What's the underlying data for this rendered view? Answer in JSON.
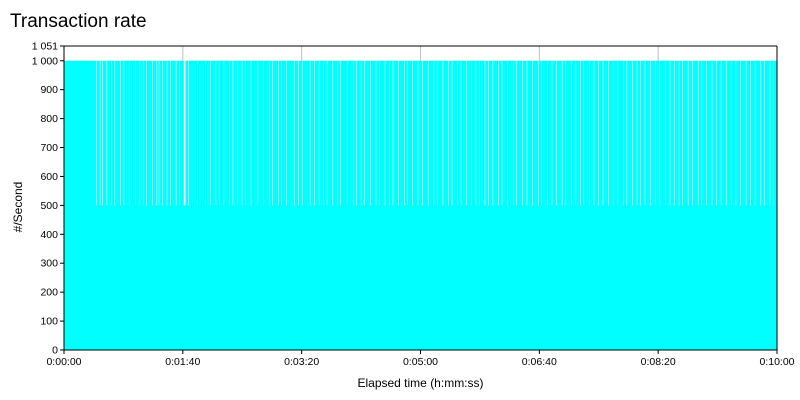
{
  "chart_data": {
    "type": "bar",
    "title": "Transaction rate",
    "xlabel": "Elapsed time (h:mm:ss)",
    "ylabel": "#/Second",
    "xlim": [
      0,
      600
    ],
    "ylim": [
      0,
      1051
    ],
    "y_ticks": [
      "0",
      "100",
      "200",
      "300",
      "400",
      "500",
      "600",
      "700",
      "800",
      "900",
      "1 000",
      "1 051"
    ],
    "y_tick_values": [
      0,
      100,
      200,
      300,
      400,
      500,
      600,
      700,
      800,
      900,
      1000,
      1051
    ],
    "x_ticks": [
      "0:00:00",
      "0:01:40",
      "0:03:20",
      "0:05:00",
      "0:06:40",
      "0:08:20",
      "0:10:00"
    ],
    "x_tick_values": [
      0,
      100,
      200,
      300,
      400,
      500,
      600
    ],
    "grid": true,
    "color": "#00ffff",
    "series": [
      {
        "values": [
          1000,
          1000,
          1000,
          1000,
          1000,
          1000,
          1000,
          1000,
          1000,
          1000,
          1000,
          1000,
          1000,
          1000,
          1000,
          1000,
          1000,
          1000,
          1000,
          1000,
          1000,
          1000,
          1000,
          1000,
          1000,
          1000,
          1000,
          1000,
          500,
          1000,
          1000,
          500,
          1000,
          500,
          1000,
          1000,
          1000,
          500,
          1000,
          1000,
          1000,
          500,
          1000,
          1000,
          500,
          1000,
          1000,
          1000,
          1000,
          500,
          1000,
          1000,
          500,
          1000,
          1000,
          1000,
          1000,
          500,
          1000,
          1000,
          1000,
          1000,
          500,
          1000,
          1000,
          1000,
          500,
          1000,
          1000,
          500,
          1000,
          1000,
          500,
          1000,
          1000,
          1000,
          1000,
          500,
          1000,
          1000,
          1000,
          500,
          1000,
          500,
          1000,
          1000,
          500,
          1000,
          1000,
          1000,
          500,
          1000,
          1000,
          500,
          1000,
          1000,
          1000,
          1000,
          500,
          1000,
          1000,
          500,
          1000,
          1000,
          1000,
          500,
          500,
          1000,
          1000,
          500,
          1000,
          1000,
          1000,
          1000,
          1000,
          1000,
          1000,
          500,
          1000,
          1000,
          1000,
          1000,
          1000,
          1000,
          500,
          1000,
          1000,
          1000,
          500,
          1000,
          1000,
          1000,
          1000,
          500,
          1000,
          1000,
          500,
          1000,
          1000,
          1000,
          500,
          1000,
          1000,
          1000,
          1000,
          500,
          1000,
          1000,
          500,
          1000,
          1000,
          1000,
          500,
          1000,
          1000,
          1000,
          500,
          1000,
          1000,
          500,
          1000,
          1000,
          1000,
          1000,
          500,
          1000,
          1000,
          1000,
          1000,
          1000,
          500,
          1000,
          1000,
          1000,
          1000,
          500,
          1000,
          1000,
          1000,
          1000,
          500,
          1000,
          1000,
          500,
          1000,
          1000,
          1000,
          1000,
          500,
          1000,
          1000,
          500,
          1000,
          1000,
          1000,
          500,
          1000,
          1000,
          1000,
          1000,
          1000,
          1000,
          500,
          1000,
          1000,
          1000,
          500,
          1000,
          1000,
          500,
          1000,
          1000,
          1000,
          1000,
          1000,
          1000,
          500,
          1000,
          1000,
          1000,
          500,
          1000,
          1000,
          1000,
          500,
          1000,
          1000,
          1000,
          500,
          1000,
          1000,
          500,
          1000,
          1000,
          1000,
          1000,
          500,
          1000,
          1000,
          1000,
          500,
          1000,
          1000,
          500,
          1000,
          1000,
          1000,
          1000,
          1000,
          500,
          1000,
          1000,
          1000,
          1000,
          500,
          1000,
          1000,
          500,
          1000,
          1000,
          1000,
          500,
          1000,
          1000,
          500,
          1000,
          1000,
          1000,
          1000,
          500,
          1000,
          1000,
          1000,
          1000,
          500,
          1000,
          1000,
          500,
          1000,
          1000,
          1000,
          1000,
          500,
          1000,
          1000,
          1000,
          500,
          1000,
          1000,
          500,
          1000,
          1000,
          1000,
          1000,
          500,
          1000,
          1000,
          1000,
          1000,
          500,
          1000,
          1000,
          500,
          1000,
          1000,
          1000,
          500,
          1000,
          1000,
          1000,
          1000,
          500,
          1000,
          1000,
          1000,
          500,
          1000,
          1000,
          1000,
          1000,
          500,
          1000,
          1000,
          1000,
          1000,
          500,
          1000,
          1000,
          500,
          1000,
          1000,
          1000,
          1000,
          500,
          1000,
          1000,
          1000,
          1000,
          500,
          1000,
          1000,
          500,
          1000,
          1000,
          1000,
          1000,
          500,
          1000,
          1000,
          500,
          1000,
          1000,
          1000,
          1000,
          500,
          1000,
          1000,
          1000,
          500,
          1000,
          1000,
          1000,
          500,
          1000,
          1000,
          500,
          1000,
          1000,
          1000,
          1000,
          500,
          1000,
          1000,
          500,
          1000,
          1000,
          1000,
          500,
          1000,
          1000,
          1000,
          1000,
          500,
          1000,
          1000,
          500,
          1000,
          1000,
          1000,
          1000,
          500,
          1000,
          1000,
          1000,
          1000,
          500,
          1000,
          1000,
          500,
          1000,
          1000,
          1000,
          1000,
          500,
          1000,
          1000,
          1000,
          500,
          1000,
          1000,
          1000,
          1000,
          500,
          1000,
          1000,
          1000,
          1000,
          500,
          1000,
          1000,
          500,
          1000,
          1000,
          1000,
          1000,
          500,
          1000,
          1000,
          1000,
          500,
          1000,
          1000,
          1000,
          500,
          1000,
          1000,
          1000,
          1000,
          500,
          1000,
          1000,
          500,
          1000,
          1000,
          1000,
          1000,
          500,
          1000,
          1000,
          1000,
          500,
          1000,
          1000,
          1000,
          500,
          1000,
          1000,
          500,
          1000,
          1000,
          1000,
          1000,
          500,
          1000,
          1000,
          1000,
          500,
          1000,
          1000,
          1000,
          500,
          1000,
          1000,
          1000,
          500,
          1000,
          1000,
          1000,
          1000,
          500,
          1000,
          1000,
          1000,
          500,
          1000,
          1000,
          1000,
          500,
          1000,
          1000,
          1000,
          1000,
          500,
          1000,
          1000,
          500,
          1000,
          1000,
          1000,
          1000,
          500,
          1000,
          1000,
          1000,
          500,
          1000,
          1000,
          500,
          1000,
          1000,
          1000,
          500,
          1000,
          1000,
          1000,
          1000,
          500,
          1000,
          1000,
          1000,
          500,
          1000,
          1000,
          1000,
          500,
          1000,
          1000,
          1000,
          1000,
          500,
          1000,
          1000,
          1000,
          500,
          1000,
          1000,
          1000,
          500,
          1000,
          1000,
          1000,
          500,
          1000,
          1000,
          500,
          1000,
          1000,
          1000,
          1000,
          500,
          1000,
          1000,
          1000,
          500,
          1000,
          1000,
          1000,
          1000,
          500,
          1000,
          1000,
          500,
          1000,
          1000,
          1000,
          500,
          1000,
          1000,
          1000,
          1000,
          500,
          1000,
          1000,
          1000,
          500,
          1000,
          1000,
          1000,
          500,
          1000,
          1000,
          1000,
          1000,
          500,
          1000,
          1000,
          1000,
          500,
          1000,
          1000,
          1000,
          500,
          1000,
          1000,
          1000,
          500,
          1000,
          1000,
          1000,
          1000,
          500,
          1000,
          1000,
          1000,
          500,
          1000,
          1000,
          1000,
          500,
          1000,
          1000,
          1000,
          1000,
          500,
          1000,
          1000,
          500,
          1000,
          1000,
          1000,
          1000,
          500,
          1000,
          1000,
          500,
          1000,
          1000,
          500
        ]
      }
    ]
  }
}
